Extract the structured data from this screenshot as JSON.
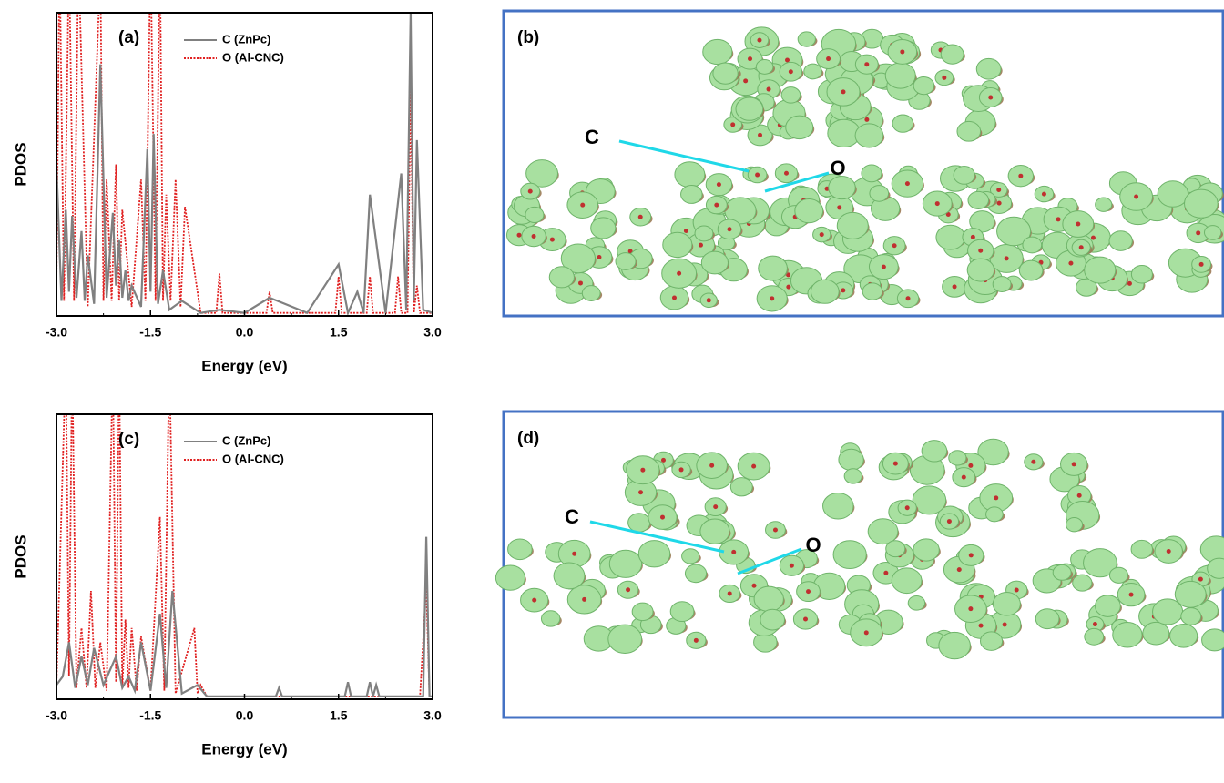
{
  "chart_data": [
    {
      "type": "line",
      "label": "(a)",
      "x_label": "Energy (eV)",
      "y_label": "PDOS",
      "xlim": [
        -3,
        3
      ],
      "ylim": [
        0,
        100
      ],
      "legend": "upper center",
      "xticks": [
        {
          "value": -3,
          "label": "-3.0"
        },
        {
          "value": -1.5,
          "label": "-1.5"
        },
        {
          "value": 0,
          "label": "0.0"
        },
        {
          "value": 1.5,
          "label": "1.5"
        },
        {
          "value": 3,
          "label": "3.0"
        }
      ],
      "series": [
        {
          "name": "C (ZnPc)",
          "color": "#808080",
          "dash": "solid",
          "x": [
            -3.0,
            -2.92,
            -2.85,
            -2.8,
            -2.75,
            -2.68,
            -2.6,
            -2.55,
            -2.5,
            -2.4,
            -2.3,
            -2.2,
            -2.1,
            -2.05,
            -2.0,
            -1.95,
            -1.9,
            -1.85,
            -1.8,
            -1.65,
            -1.55,
            -1.5,
            -1.45,
            -1.38,
            -1.3,
            -1.2,
            -1.0,
            -0.7,
            -0.4,
            0,
            0.4,
            1.0,
            1.5,
            1.65,
            1.8,
            1.9,
            2.0,
            2.25,
            2.5,
            2.58,
            2.65,
            2.7,
            2.75,
            2.85,
            3.0
          ],
          "values": [
            50,
            5,
            35,
            8,
            33,
            6,
            28,
            5,
            20,
            4,
            83,
            6,
            34,
            10,
            25,
            6,
            15,
            5,
            10,
            3,
            55,
            8,
            60,
            4,
            15,
            2,
            5,
            1,
            2,
            1,
            6,
            1,
            17,
            1,
            8,
            1,
            40,
            1,
            47,
            2,
            100,
            5,
            58,
            2,
            1
          ]
        },
        {
          "name": "O (Al-CNC)",
          "color": "#e02020",
          "dash": "dotted",
          "x": [
            -3.0,
            -2.95,
            -2.88,
            -2.8,
            -2.72,
            -2.65,
            -2.5,
            -2.3,
            -2.25,
            -2.2,
            -2.12,
            -2.05,
            -2.0,
            -1.95,
            -1.8,
            -1.65,
            -1.58,
            -1.5,
            -1.42,
            -1.35,
            -1.3,
            -1.25,
            -1.18,
            -1.1,
            -1.02,
            -0.95,
            -0.7,
            -0.45,
            -0.4,
            -0.35,
            0.35,
            0.4,
            0.45,
            1.45,
            1.5,
            1.55,
            1.95,
            2.0,
            2.05,
            2.4,
            2.45,
            2.5,
            2.6,
            2.65,
            2.7,
            2.75,
            2.8,
            3.0
          ],
          "values": [
            10,
            120,
            5,
            120,
            5,
            120,
            3,
            115,
            5,
            45,
            5,
            50,
            5,
            35,
            3,
            45,
            5,
            120,
            5,
            120,
            5,
            40,
            5,
            45,
            3,
            36,
            1,
            1,
            14,
            1,
            1,
            8,
            1,
            1,
            13,
            1,
            1,
            13,
            1,
            1,
            13,
            1,
            1,
            75,
            1,
            10,
            1,
            1
          ]
        }
      ]
    },
    {
      "type": "line",
      "label": "(c)",
      "x_label": "Energy (eV)",
      "y_label": "PDOS",
      "xlim": [
        -3,
        3
      ],
      "ylim": [
        0,
        100
      ],
      "legend": "upper center",
      "xticks": [
        {
          "value": -3,
          "label": "-3.0"
        },
        {
          "value": -1.5,
          "label": "-1.5"
        },
        {
          "value": 0,
          "label": "0.0"
        },
        {
          "value": 1.5,
          "label": "1.5"
        },
        {
          "value": 3,
          "label": "3.0"
        }
      ],
      "series": [
        {
          "name": "C (ZnPc)",
          "color": "#808080",
          "dash": "solid",
          "x": [
            -3.0,
            -2.9,
            -2.8,
            -2.7,
            -2.6,
            -2.5,
            -2.4,
            -2.25,
            -2.05,
            -1.95,
            -1.85,
            -1.75,
            -1.65,
            -1.5,
            -1.35,
            -1.25,
            -1.15,
            -1.0,
            -0.75,
            -0.6,
            0.5,
            0.55,
            0.6,
            1.6,
            1.65,
            1.7,
            1.95,
            2.0,
            2.05,
            2.1,
            2.15,
            2.85,
            2.9,
            2.95,
            3.0
          ],
          "values": [
            5,
            8,
            20,
            4,
            15,
            5,
            18,
            5,
            15,
            4,
            8,
            3,
            20,
            3,
            30,
            4,
            38,
            2,
            5,
            1,
            1,
            4,
            1,
            1,
            6,
            1,
            1,
            6,
            1,
            5,
            1,
            1,
            57,
            1,
            1
          ]
        },
        {
          "name": "O (Al-CNC)",
          "color": "#e02020",
          "dash": "dotted",
          "x": [
            -3.0,
            -2.85,
            -2.8,
            -2.75,
            -2.68,
            -2.6,
            -2.52,
            -2.45,
            -2.38,
            -2.3,
            -2.2,
            -2.1,
            -2.05,
            -2.0,
            -1.95,
            -1.9,
            -1.85,
            -1.8,
            -1.72,
            -1.65,
            -1.5,
            -1.35,
            -1.28,
            -1.2,
            -1.1,
            -0.8,
            -0.75,
            -0.7,
            -0.6,
            2.8,
            2.9,
            2.95,
            3.0
          ],
          "values": [
            5,
            120,
            8,
            120,
            4,
            25,
            4,
            38,
            4,
            20,
            3,
            120,
            6,
            120,
            4,
            28,
            4,
            25,
            3,
            22,
            3,
            64,
            3,
            120,
            2,
            25,
            2,
            5,
            1,
            1,
            40,
            1,
            1
          ]
        }
      ]
    }
  ],
  "panels": [
    {
      "label": "(b)",
      "atom_labels": [
        "C",
        "O"
      ]
    },
    {
      "label": "(d)",
      "atom_labels": [
        "C",
        "O"
      ]
    }
  ]
}
